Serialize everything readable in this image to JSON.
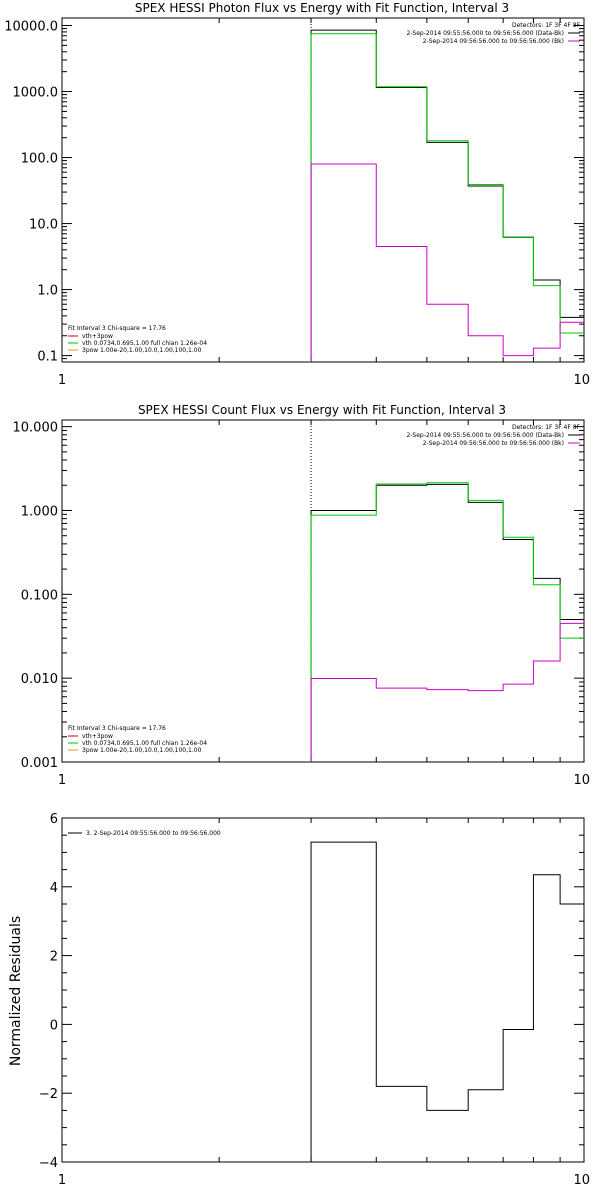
{
  "panels": [
    {
      "id": "photon",
      "title": "SPEX HESSI Photon Flux vs Energy with Fit Function, Interval 3",
      "xscale": "log",
      "yscale": "log",
      "xlim": [
        1,
        10
      ],
      "ylim": [
        0.08,
        13000
      ],
      "xticks": [
        {
          "v": 1,
          "label": "1"
        },
        {
          "v": 10,
          "label": "10"
        }
      ],
      "yticks": [
        {
          "v": 0.1,
          "label": "0.1"
        },
        {
          "v": 1,
          "label": "1.0"
        },
        {
          "v": 10,
          "label": "10.0"
        },
        {
          "v": 100,
          "label": "100.0"
        },
        {
          "v": 1000,
          "label": "1000.0"
        },
        {
          "v": 10000,
          "label": "10000.0"
        }
      ],
      "legend_top": {
        "header": "Detectors: 1F 3F 4F 8F",
        "lines": [
          {
            "text": "2-Sep-2014 09:55:56.000 to 09:56:56.000 (Data-Bk)",
            "color": "#000000"
          },
          {
            "text": "2-Sep-2014 09:56:56.000 to 09:56:56.000 (Bk)",
            "color": "#cc00cc"
          }
        ]
      },
      "legend_bottom": {
        "header": "Fit Interval 3   Chi-square = 17.76",
        "lines": [
          {
            "text": "vth+3pow",
            "color": "#cc0000"
          },
          {
            "text": "vth 0.0734,0.695,1.00  full chian 1.26e-04",
            "color": "#00bb00"
          },
          {
            "text": "3pow 1.00e-20,1.00,10.0,1.00,100,1.00",
            "color": "#ccaa00"
          }
        ]
      }
    },
    {
      "id": "count",
      "title": "SPEX HESSI Count Flux vs Energy with Fit Function, Interval 3",
      "xscale": "log",
      "yscale": "log",
      "xlim": [
        1,
        10
      ],
      "ylim": [
        0.001,
        12
      ],
      "xticks": [
        {
          "v": 1,
          "label": "1"
        },
        {
          "v": 10,
          "label": "10"
        }
      ],
      "yticks": [
        {
          "v": 0.001,
          "label": "0.001"
        },
        {
          "v": 0.01,
          "label": "0.010"
        },
        {
          "v": 0.1,
          "label": "0.100"
        },
        {
          "v": 1,
          "label": "1.000"
        },
        {
          "v": 10,
          "label": "10.000"
        }
      ],
      "legend_top": {
        "header": "Detectors: 1F 3F 4F 8F",
        "lines": [
          {
            "text": "2-Sep-2014 09:55:56.000 to 09:56:56.000 (Data-Bk)",
            "color": "#000000"
          },
          {
            "text": "2-Sep-2014 09:56:56.000 to 09:56:56.000 (Bk)",
            "color": "#cc00cc"
          }
        ]
      },
      "legend_bottom": {
        "header": "Fit Interval 3   Chi-square = 17.76",
        "lines": [
          {
            "text": "vth+3pow",
            "color": "#cc0000"
          },
          {
            "text": "vth 0.0734,0.695,1.00  full chian 1.26e-04",
            "color": "#00bb00"
          },
          {
            "text": "3pow 1.00e-20,1.00,10.0,1.00,100,1.00",
            "color": "#ccaa00"
          }
        ]
      }
    },
    {
      "id": "residuals",
      "title": "",
      "ylabel": "Normalized Residuals",
      "xscale": "log",
      "yscale": "linear",
      "xlim": [
        1,
        10
      ],
      "ylim": [
        -4,
        6
      ],
      "xticks": [
        {
          "v": 1,
          "label": "1"
        },
        {
          "v": 10,
          "label": "10"
        }
      ],
      "yticks": [
        {
          "v": -4,
          "label": "−4"
        },
        {
          "v": -2,
          "label": "−2"
        },
        {
          "v": 0,
          "label": "0"
        },
        {
          "v": 2,
          "label": "2"
        },
        {
          "v": 4,
          "label": "4"
        },
        {
          "v": 6,
          "label": "6"
        }
      ],
      "legend_top_left": {
        "text": "3. 2-Sep-2014 09:55:56.000 to 09:56:56.000",
        "color": "#000000"
      }
    }
  ],
  "chart_data": [
    {
      "type": "line",
      "title": "SPEX HESSI Photon Flux vs Energy with Fit Function, Interval 3",
      "xlabel": "",
      "ylabel": "",
      "x_scale": "log",
      "y_scale": "log",
      "xlim": [
        1,
        10
      ],
      "ylim": [
        0.08,
        13000
      ],
      "bin_edges_keV": [
        3,
        4,
        5,
        6,
        7,
        8,
        9,
        10
      ],
      "fit_range_keV": 3,
      "series": [
        {
          "name": "Data-Bk",
          "color": "#000000",
          "values": [
            8500,
            1150,
            170,
            37,
            6.2,
            1.4,
            0.38
          ]
        },
        {
          "name": "vth 0.0734,0.695,1.00  full chian 1.26e-04",
          "color": "#00cc00",
          "values": [
            7500,
            1180,
            180,
            39,
            6.3,
            1.15,
            0.22
          ]
        },
        {
          "name": "Bk",
          "color": "#cc00cc",
          "values": [
            80,
            4.5,
            0.6,
            0.2,
            0.1,
            0.13,
            0.32
          ]
        }
      ]
    },
    {
      "type": "line",
      "title": "SPEX HESSI Count Flux vs Energy with Fit Function, Interval 3",
      "xlabel": "",
      "ylabel": "",
      "x_scale": "log",
      "y_scale": "log",
      "xlim": [
        1,
        10
      ],
      "ylim": [
        0.001,
        12
      ],
      "bin_edges_keV": [
        3,
        4,
        5,
        6,
        7,
        8,
        9,
        10
      ],
      "fit_range_keV": 3,
      "series": [
        {
          "name": "Data-Bk",
          "color": "#000000",
          "values": [
            1.0,
            2.0,
            2.05,
            1.25,
            0.45,
            0.155,
            0.05
          ]
        },
        {
          "name": "vth 0.0734,0.695,1.00  full chian 1.26e-04",
          "color": "#00cc00",
          "values": [
            0.88,
            2.07,
            2.14,
            1.32,
            0.48,
            0.13,
            0.03
          ]
        },
        {
          "name": "Bk",
          "color": "#cc00cc",
          "values": [
            0.0099,
            0.0076,
            0.0073,
            0.0071,
            0.0085,
            0.016,
            0.045
          ]
        }
      ]
    },
    {
      "type": "line",
      "title": "",
      "xlabel": "",
      "ylabel": "Normalized Residuals",
      "x_scale": "log",
      "y_scale": "linear",
      "xlim": [
        1,
        10
      ],
      "ylim": [
        -4,
        6
      ],
      "bin_edges_keV": [
        3,
        4,
        5,
        6,
        7,
        8,
        9,
        10
      ],
      "series": [
        {
          "name": "3. 2-Sep-2014 09:55:56.000 to 09:56:56.000",
          "color": "#000000",
          "values": [
            5.3,
            -1.8,
            -2.5,
            -1.9,
            -0.15,
            4.35,
            3.5
          ]
        }
      ]
    }
  ]
}
